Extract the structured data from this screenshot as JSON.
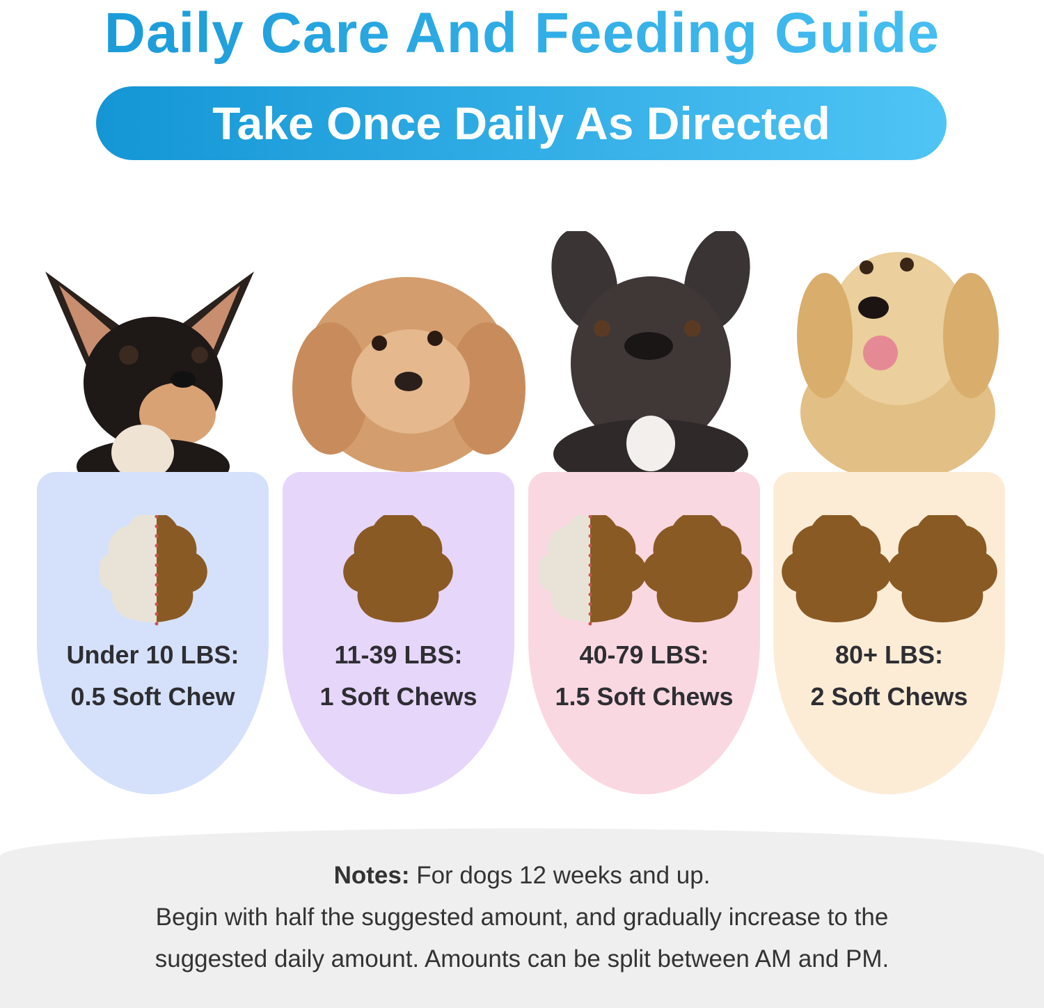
{
  "header": {
    "title": "Daily Care And Feeding Guide",
    "subtitle": "Take Once Daily As Directed"
  },
  "colors": {
    "title_gradient": [
      "#1597d6",
      "#4cc3f4"
    ],
    "chew_brown": "#8a5a24",
    "chew_pale": "#e9e3d7",
    "split_line": "#c9554f"
  },
  "dosage": [
    {
      "dog": "chihuahua",
      "weight": "Under 10 LBS:",
      "amount": "0.5 Soft Chew",
      "chews": 0.5,
      "color": "#d5e1fa"
    },
    {
      "dog": "poodle",
      "weight": "11-39 LBS:",
      "amount": "1 Soft Chews",
      "chews": 1,
      "color": "#e6d6fa"
    },
    {
      "dog": "french-bulldog",
      "weight": "40-79 LBS:",
      "amount": "1.5 Soft Chews",
      "chews": 1.5,
      "color": "#fad8e1"
    },
    {
      "dog": "golden-retriever",
      "weight": "80+ LBS:",
      "amount": "2 Soft Chews",
      "chews": 2,
      "color": "#fcecd6"
    }
  ],
  "notes": {
    "label": "Notes:",
    "line1": " For dogs 12 weeks and up.",
    "line2": "Begin with half the suggested amount, and gradually increase to the",
    "line3": "suggested daily amount. Amounts can be split between AM and PM."
  }
}
